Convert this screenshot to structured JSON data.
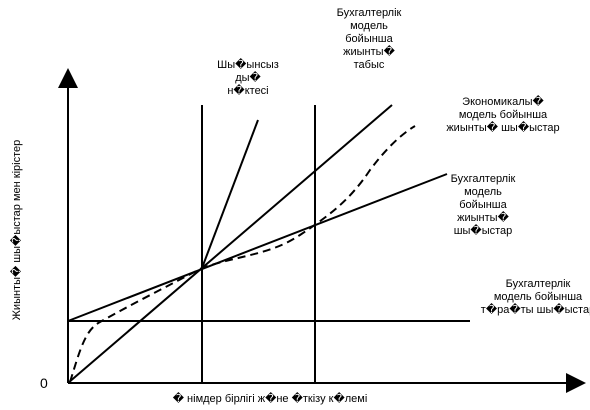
{
  "axis": {
    "origin": "0",
    "y_label": "Жиынты� шы�ыстар мен кірістер",
    "x_label": "� німдер бірлігі ж�не �ткізу к�лемі"
  },
  "labels": {
    "breakeven": [
      "Шы�ынсыз",
      "ды�",
      "н�ктесі"
    ],
    "accounting_revenue": [
      "Бухгалтерлік",
      "модель",
      "бойынша",
      "жиынты�",
      "табыс"
    ],
    "economic_cost": [
      "Экономикалы�",
      "модель бойынша",
      "жиынты� шы�ыстар"
    ],
    "accounting_cost": [
      "Бухгалтерлік",
      "модель",
      "бойынша",
      "жиынты�",
      "шы�ыстар"
    ],
    "fixed_cost": [
      "Бухгалтерлік",
      "модель бойынша",
      "т�ра�ты шы�ыстар"
    ]
  }
}
